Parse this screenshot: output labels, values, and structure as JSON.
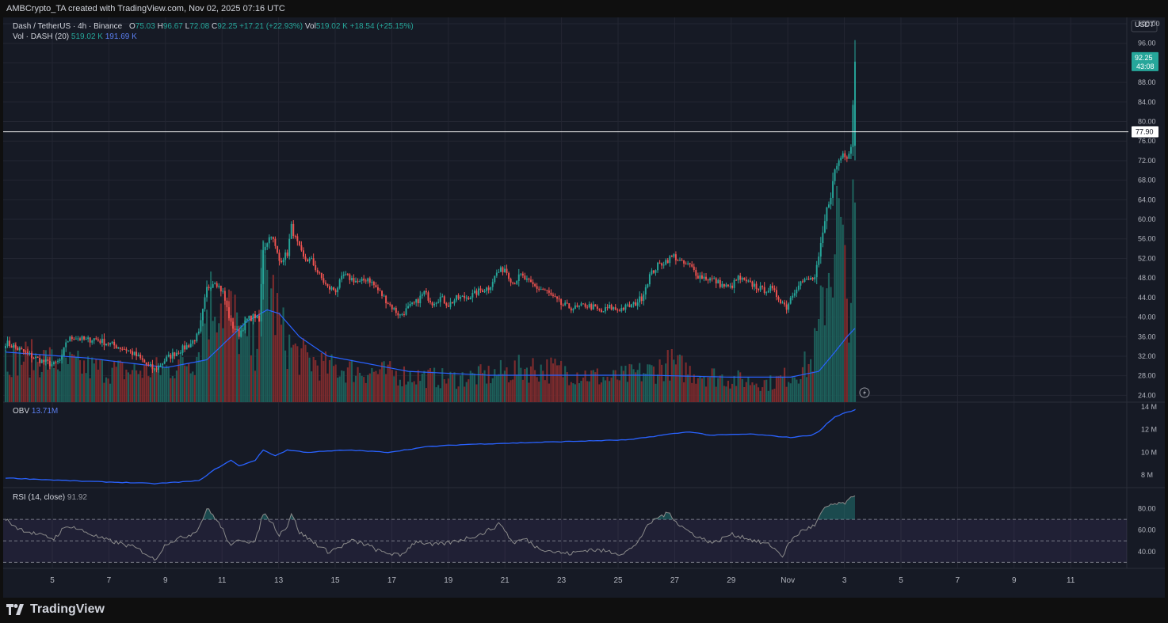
{
  "header": {
    "attribution": "AMBCrypto_TA created with TradingView.com, Nov 02, 2025 07:16 UTC"
  },
  "legend": {
    "symbol": "Dash / TetherUS · 4h · Binance",
    "open_label": "O",
    "open": "75.03",
    "high_label": "H",
    "high": "96.67",
    "low_label": "L",
    "low": "72.08",
    "close_label": "C",
    "close": "92.25",
    "change": "+17.21 (+22.93%)",
    "vol_label": "Vol",
    "vol": "519.02 K",
    "vol_change": "+18.54 (+25.15%)"
  },
  "volume_legend": {
    "label": "Vol · DASH (20)",
    "value": "519.02 K",
    "ma_value": "191.69 K"
  },
  "obv_legend": {
    "label": "OBV",
    "value": "13.71M"
  },
  "rsi_legend": {
    "label": "RSI (14, close)",
    "value": "91.92"
  },
  "price_axis": {
    "currency": "USDT",
    "ticks": [
      "100.00",
      "96.00",
      "92.00",
      "88.00",
      "84.00",
      "80.00",
      "76.00",
      "72.00",
      "68.00",
      "64.00",
      "60.00",
      "56.00",
      "52.00",
      "48.00",
      "44.00",
      "40.00",
      "36.00",
      "32.00",
      "28.00",
      "24.00"
    ],
    "last_price": "92.25",
    "countdown": "43:08",
    "level_price": "77.90"
  },
  "obv_axis": {
    "ticks": [
      "14 M",
      "12 M",
      "10 M",
      "8 M"
    ]
  },
  "rsi_axis": {
    "ticks": [
      "80.00",
      "60.00",
      "40.00"
    ]
  },
  "time_axis": {
    "ticks": [
      "5",
      "7",
      "9",
      "11",
      "13",
      "15",
      "17",
      "19",
      "21",
      "23",
      "25",
      "27",
      "29",
      "Nov",
      "3",
      "5",
      "7",
      "9",
      "11"
    ]
  },
  "brand": {
    "name": "TradingView"
  },
  "colors": {
    "up": "#26a69a",
    "down": "#ef5350",
    "ma": "#2962ff",
    "obv": "#2962ff",
    "rsi": "#8a8a8a",
    "rsi_band": "#7e57c2",
    "level": "#ffffff"
  },
  "chart_data": [
    {
      "type": "candlestick",
      "title": "Dash / TetherUS · 4h · Binance",
      "ylabel": "USDT",
      "ylim": [
        22.6,
        101.3
      ],
      "x_ticks": [
        "5",
        "7",
        "9",
        "11",
        "13",
        "15",
        "17",
        "19",
        "21",
        "23",
        "25",
        "27",
        "29",
        "Nov",
        "3",
        "5",
        "7",
        "9",
        "11"
      ],
      "horizontal_level": 77.9,
      "close_path": [
        [
          0,
          34.8
        ],
        [
          6,
          33.5
        ],
        [
          12,
          32.2
        ],
        [
          18,
          31.0
        ],
        [
          24,
          30.2
        ],
        [
          28,
          31.5
        ],
        [
          30,
          35.0
        ],
        [
          34,
          36.0
        ],
        [
          40,
          35.2
        ],
        [
          44,
          35.6
        ],
        [
          48,
          35.0
        ],
        [
          54,
          34.2
        ],
        [
          60,
          33.4
        ],
        [
          66,
          31.8
        ],
        [
          70,
          30.3
        ],
        [
          74,
          29.2
        ],
        [
          80,
          31.5
        ],
        [
          84,
          32.6
        ],
        [
          88,
          33.5
        ],
        [
          92,
          34.6
        ],
        [
          96,
          36.5
        ],
        [
          100,
          45.8
        ],
        [
          104,
          47.5
        ],
        [
          108,
          45.0
        ],
        [
          112,
          38.5
        ],
        [
          116,
          36.5
        ],
        [
          120,
          39.5
        ],
        [
          124,
          40.2
        ],
        [
          126,
          39.0
        ],
        [
          128,
          54.0
        ],
        [
          132,
          57.0
        ],
        [
          136,
          51.5
        ],
        [
          140,
          53.0
        ],
        [
          142,
          58.5
        ],
        [
          144,
          56.0
        ],
        [
          148,
          52.0
        ],
        [
          152,
          51.5
        ],
        [
          156,
          48.5
        ],
        [
          160,
          46.0
        ],
        [
          164,
          45.5
        ],
        [
          168,
          48.5
        ],
        [
          172,
          47.8
        ],
        [
          176,
          47.0
        ],
        [
          180,
          48.0
        ],
        [
          184,
          46.0
        ],
        [
          188,
          44.0
        ],
        [
          192,
          42.0
        ],
        [
          196,
          40.3
        ],
        [
          200,
          41.8
        ],
        [
          204,
          43.0
        ],
        [
          208,
          45.0
        ],
        [
          212,
          43.0
        ],
        [
          216,
          44.0
        ],
        [
          220,
          42.5
        ],
        [
          224,
          43.8
        ],
        [
          228,
          44.0
        ],
        [
          232,
          44.5
        ],
        [
          236,
          45.5
        ],
        [
          240,
          46.0
        ],
        [
          244,
          49.0
        ],
        [
          248,
          50.0
        ],
        [
          252,
          47.0
        ],
        [
          256,
          48.5
        ],
        [
          260,
          47.0
        ],
        [
          264,
          46.0
        ],
        [
          268,
          45.5
        ],
        [
          272,
          44.0
        ],
        [
          276,
          42.6
        ],
        [
          280,
          42.0
        ],
        [
          284,
          41.8
        ],
        [
          288,
          42.5
        ],
        [
          292,
          42.0
        ],
        [
          296,
          41.0
        ],
        [
          300,
          42.0
        ],
        [
          304,
          41.5
        ],
        [
          308,
          42.0
        ],
        [
          312,
          42.5
        ],
        [
          316,
          44.0
        ],
        [
          320,
          48.5
        ],
        [
          324,
          50.5
        ],
        [
          328,
          51.5
        ],
        [
          332,
          52.5
        ],
        [
          336,
          51.0
        ],
        [
          340,
          50.5
        ],
        [
          344,
          48.5
        ],
        [
          348,
          48.0
        ],
        [
          352,
          47.5
        ],
        [
          356,
          46.5
        ],
        [
          360,
          46.0
        ],
        [
          364,
          48.0
        ],
        [
          368,
          47.0
        ],
        [
          372,
          46.5
        ],
        [
          376,
          45.5
        ],
        [
          380,
          45.8
        ],
        [
          384,
          44.0
        ],
        [
          388,
          42.0
        ],
        [
          390,
          44.0
        ],
        [
          394,
          47.0
        ],
        [
          398,
          47.5
        ],
        [
          402,
          48.0
        ],
        [
          404,
          52.0
        ],
        [
          406,
          57.0
        ],
        [
          408,
          62.0
        ],
        [
          410,
          65.0
        ],
        [
          412,
          70.0
        ],
        [
          414,
          72.0
        ],
        [
          416,
          73.5
        ],
        [
          418,
          73.0
        ],
        [
          420,
          75.0
        ],
        [
          422,
          92.25
        ]
      ],
      "candle_count": 423,
      "last_candle": {
        "open": 75.03,
        "high": 96.67,
        "low": 72.08,
        "close": 92.25
      }
    },
    {
      "type": "bar",
      "title": "Vol · DASH (20)",
      "ylim": [
        0,
        1000
      ],
      "last_value": 519.02,
      "last_ma": 191.69,
      "volume_profile": [
        [
          0,
          120
        ],
        [
          20,
          110
        ],
        [
          40,
          90
        ],
        [
          60,
          80
        ],
        [
          80,
          85
        ],
        [
          95,
          120
        ],
        [
          100,
          250
        ],
        [
          106,
          280
        ],
        [
          112,
          230
        ],
        [
          118,
          170
        ],
        [
          124,
          140
        ],
        [
          126,
          290
        ],
        [
          130,
          330
        ],
        [
          136,
          200
        ],
        [
          140,
          150
        ],
        [
          146,
          120
        ],
        [
          160,
          90
        ],
        [
          180,
          80
        ],
        [
          200,
          70
        ],
        [
          220,
          60
        ],
        [
          240,
          70
        ],
        [
          260,
          90
        ],
        [
          280,
          80
        ],
        [
          300,
          60
        ],
        [
          320,
          80
        ],
        [
          330,
          100
        ],
        [
          340,
          80
        ],
        [
          360,
          60
        ],
        [
          380,
          50
        ],
        [
          390,
          70
        ],
        [
          396,
          90
        ],
        [
          400,
          100
        ],
        [
          404,
          180
        ],
        [
          408,
          330
        ],
        [
          412,
          420
        ],
        [
          414,
          470
        ],
        [
          416,
          360
        ],
        [
          418,
          260
        ],
        [
          420,
          300
        ],
        [
          422,
          519
        ]
      ],
      "ma_profile": [
        [
          0,
          130
        ],
        [
          40,
          115
        ],
        [
          80,
          90
        ],
        [
          100,
          110
        ],
        [
          110,
          160
        ],
        [
          120,
          210
        ],
        [
          130,
          240
        ],
        [
          136,
          230
        ],
        [
          146,
          170
        ],
        [
          160,
          120
        ],
        [
          200,
          80
        ],
        [
          240,
          70
        ],
        [
          280,
          70
        ],
        [
          320,
          70
        ],
        [
          360,
          65
        ],
        [
          390,
          65
        ],
        [
          404,
          80
        ],
        [
          412,
          130
        ],
        [
          418,
          170
        ],
        [
          422,
          191.69
        ]
      ]
    },
    {
      "type": "line",
      "title": "OBV",
      "ylim": [
        6.9,
        14.4
      ],
      "last_value": 13.71,
      "obv_path": [
        [
          0,
          7.75
        ],
        [
          20,
          7.6
        ],
        [
          40,
          7.45
        ],
        [
          60,
          7.35
        ],
        [
          74,
          7.25
        ],
        [
          96,
          7.5
        ],
        [
          104,
          8.5
        ],
        [
          112,
          9.3
        ],
        [
          116,
          8.8
        ],
        [
          124,
          9.3
        ],
        [
          128,
          10.2
        ],
        [
          134,
          9.7
        ],
        [
          140,
          10.2
        ],
        [
          150,
          10.0
        ],
        [
          170,
          10.2
        ],
        [
          190,
          10.0
        ],
        [
          210,
          10.5
        ],
        [
          230,
          10.7
        ],
        [
          250,
          10.8
        ],
        [
          270,
          10.9
        ],
        [
          290,
          11.0
        ],
        [
          310,
          11.1
        ],
        [
          330,
          11.6
        ],
        [
          340,
          11.8
        ],
        [
          350,
          11.5
        ],
        [
          370,
          11.6
        ],
        [
          390,
          11.3
        ],
        [
          400,
          11.5
        ],
        [
          404,
          11.8
        ],
        [
          408,
          12.5
        ],
        [
          412,
          13.1
        ],
        [
          416,
          13.4
        ],
        [
          422,
          13.71
        ]
      ]
    },
    {
      "type": "line",
      "title": "RSI (14, close)",
      "ylim": [
        24.4,
        99.5
      ],
      "bands": [
        30,
        50,
        70
      ],
      "last_value": 91.92,
      "rsi_path": [
        [
          0,
          70
        ],
        [
          6,
          62
        ],
        [
          12,
          58
        ],
        [
          18,
          55
        ],
        [
          24,
          52
        ],
        [
          28,
          60
        ],
        [
          32,
          64
        ],
        [
          40,
          58
        ],
        [
          48,
          52
        ],
        [
          56,
          48
        ],
        [
          64,
          44
        ],
        [
          70,
          38
        ],
        [
          74,
          32
        ],
        [
          80,
          48
        ],
        [
          86,
          52
        ],
        [
          92,
          56
        ],
        [
          96,
          62
        ],
        [
          100,
          80
        ],
        [
          104,
          72
        ],
        [
          108,
          60
        ],
        [
          112,
          44
        ],
        [
          116,
          52
        ],
        [
          120,
          50
        ],
        [
          124,
          48
        ],
        [
          128,
          76
        ],
        [
          132,
          68
        ],
        [
          136,
          56
        ],
        [
          140,
          64
        ],
        [
          142,
          76
        ],
        [
          146,
          58
        ],
        [
          152,
          50
        ],
        [
          160,
          40
        ],
        [
          166,
          44
        ],
        [
          172,
          50
        ],
        [
          180,
          46
        ],
        [
          186,
          40
        ],
        [
          192,
          38
        ],
        [
          196,
          36
        ],
        [
          204,
          50
        ],
        [
          212,
          46
        ],
        [
          220,
          48
        ],
        [
          228,
          52
        ],
        [
          236,
          56
        ],
        [
          242,
          62
        ],
        [
          246,
          66
        ],
        [
          252,
          48
        ],
        [
          258,
          52
        ],
        [
          264,
          44
        ],
        [
          272,
          40
        ],
        [
          280,
          38
        ],
        [
          290,
          42
        ],
        [
          300,
          40
        ],
        [
          306,
          38
        ],
        [
          312,
          44
        ],
        [
          320,
          66
        ],
        [
          324,
          72
        ],
        [
          330,
          76
        ],
        [
          334,
          66
        ],
        [
          340,
          58
        ],
        [
          346,
          52
        ],
        [
          352,
          48
        ],
        [
          360,
          56
        ],
        [
          366,
          54
        ],
        [
          372,
          50
        ],
        [
          380,
          46
        ],
        [
          386,
          36
        ],
        [
          390,
          50
        ],
        [
          396,
          60
        ],
        [
          402,
          64
        ],
        [
          406,
          78
        ],
        [
          410,
          84
        ],
        [
          414,
          84
        ],
        [
          418,
          86
        ],
        [
          422,
          91.92
        ]
      ]
    }
  ]
}
